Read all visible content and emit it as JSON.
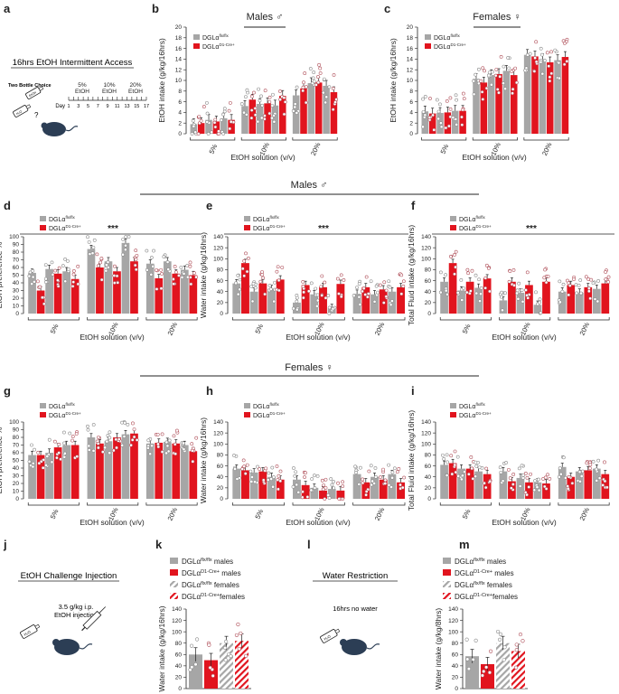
{
  "colors": {
    "ctrl": "#a6a6a6",
    "cre": "#e1141e",
    "dot_ctrl": "#8a8a8a",
    "dot_cre": "#b0505a"
  },
  "panel_letters": [
    "a",
    "b",
    "c",
    "d",
    "e",
    "f",
    "g",
    "h",
    "i",
    "j",
    "k",
    "l",
    "m"
  ],
  "sex": {
    "males": "Males ♂",
    "females": "Females ♀"
  },
  "legend": {
    "ctrl_base": "DGLα",
    "ctrl_sup": "flx/flx",
    "cre_base": "DGLα",
    "cre_sup": "D1-Cre+"
  },
  "stars": "***",
  "panel_a": {
    "title": "16hrs EtOH Intermittent Access",
    "two_bottle": "Two Bottle Choice",
    "bottle_label": "EtOH",
    "question": "?",
    "day_label": "Day",
    "days": [
      "1",
      "3",
      "5",
      "7",
      "9",
      "11",
      "13",
      "15",
      "17"
    ],
    "phases": [
      {
        "pct": "5%",
        "lab": "EtOH"
      },
      {
        "pct": "10%",
        "lab": "EtOH"
      },
      {
        "pct": "20%",
        "lab": "EtOH"
      }
    ]
  },
  "panel_j": {
    "title": "EtOH Challenge Injection",
    "dose": "3.5 g/kg i.p.",
    "inj": "EtOH injection",
    "bottle": "H₂O"
  },
  "panel_l": {
    "title": "Water Restriction",
    "text": "16hrs no water",
    "bottle": "H₂O"
  },
  "legend_km": [
    {
      "base": "DGLα",
      "sup": "flx/flx",
      "suffix": " males"
    },
    {
      "base": "DGLα",
      "sup": "D1-Cre+",
      "suffix": " males"
    },
    {
      "base": "DGLα",
      "sup": "flx/flx",
      "suffix": " females"
    },
    {
      "base": "DGLα",
      "sup": "D1-Cre+",
      "suffix": "females"
    }
  ],
  "chart_data": [
    {
      "id": "b",
      "type": "bar",
      "ylabel": "EtOH intake (g/kg/16hrs)",
      "xlabel": "EtOH solution (v/v)",
      "categories": [
        "5%",
        "10%",
        "20%"
      ],
      "ylim": [
        0,
        20
      ],
      "yticks": [
        0,
        2,
        4,
        6,
        8,
        10,
        12,
        14,
        16,
        18,
        20
      ],
      "series": [
        {
          "name": "DGLα flx/flx",
          "values": [
            [
              1.8,
              2.6,
              2.9
            ],
            [
              5.2,
              5.6,
              5.3
            ],
            [
              7.2,
              9.5,
              9.0
            ]
          ]
        },
        {
          "name": "DGLα D1-Cre+",
          "values": [
            [
              2.0,
              2.3,
              2.6
            ],
            [
              6.4,
              5.7,
              7.1
            ],
            [
              8.5,
              9.6,
              7.8
            ]
          ]
        }
      ]
    },
    {
      "id": "c",
      "type": "bar",
      "ylabel": "EtOH intake (g/kg/16hrs)",
      "xlabel": "EtOH solution (v/v)",
      "categories": [
        "5%",
        "10%",
        "20%"
      ],
      "ylim": [
        0,
        20
      ],
      "yticks": [
        0,
        2,
        4,
        6,
        8,
        10,
        12,
        14,
        16,
        18,
        20
      ],
      "series": [
        {
          "name": "DGLα flx/flx",
          "values": [
            [
              4.2,
              3.9,
              4.3
            ],
            [
              10.3,
              11.0,
              11.8
            ],
            [
              14.8,
              14.0,
              13.8
            ]
          ]
        },
        {
          "name": "DGLα D1-Cre+",
          "values": [
            [
              3.8,
              4.0,
              4.3
            ],
            [
              9.6,
              11.2,
              11.0
            ],
            [
              14.5,
              13.4,
              14.4
            ]
          ]
        }
      ]
    },
    {
      "id": "d",
      "type": "bar",
      "ylabel": "EtOH preference %",
      "xlabel": "EtOH solution (v/v)",
      "categories": [
        "5%",
        "10%",
        "20%"
      ],
      "ylim": [
        0,
        100
      ],
      "yticks": [
        0,
        10,
        20,
        30,
        40,
        50,
        60,
        70,
        80,
        90,
        100
      ],
      "series": [
        {
          "name": "DGLα flx/flx",
          "values": [
            [
              53,
              58,
              55
            ],
            [
              84,
              68,
              92
            ],
            [
              65,
              68,
              57
            ]
          ]
        },
        {
          "name": "DGLα D1-Cre+",
          "values": [
            [
              30,
              52,
              45
            ],
            [
              60,
              55,
              68
            ],
            [
              46,
              52,
              50
            ]
          ]
        }
      ]
    },
    {
      "id": "e",
      "type": "bar",
      "ylabel": "Water intake (g/kg/16hrs)",
      "xlabel": "EtOH solution (v/v)",
      "categories": [
        "5%",
        "10%",
        "20%"
      ],
      "ylim": [
        0,
        140
      ],
      "yticks": [
        0,
        20,
        40,
        60,
        80,
        100,
        120,
        140
      ],
      "series": [
        {
          "name": "DGLα flx/flx",
          "values": [
            [
              55,
              40,
              45
            ],
            [
              20,
              35,
              10
            ],
            [
              36,
              35,
              40
            ]
          ]
        },
        {
          "name": "DGLα D1-Cre+",
          "values": [
            [
              92,
              55,
              62
            ],
            [
              52,
              48,
              54
            ],
            [
              48,
              44,
              48
            ]
          ]
        }
      ]
    },
    {
      "id": "f",
      "type": "bar",
      "ylabel": "Total Fluid intake (g/kg/16hrs)",
      "xlabel": "EtOH solution (v/v)",
      "categories": [
        "5%",
        "10%",
        "20%"
      ],
      "ylim": [
        0,
        140
      ],
      "yticks": [
        0,
        20,
        40,
        60,
        80,
        100,
        120,
        140
      ],
      "series": [
        {
          "name": "DGLα flx/flx",
          "values": [
            [
              58,
              42,
              47
            ],
            [
              24,
              38,
              16
            ],
            [
              40,
              38,
              45
            ]
          ]
        },
        {
          "name": "DGLα D1-Cre+",
          "values": [
            [
              92,
              58,
              64
            ],
            [
              58,
              52,
              58
            ],
            [
              52,
              48,
              55
            ]
          ]
        }
      ]
    },
    {
      "id": "g",
      "type": "bar",
      "ylabel": "EtOH preference %",
      "xlabel": "EtOH solution (v/v)",
      "categories": [
        "5%",
        "10%",
        "20%"
      ],
      "ylim": [
        0,
        100
      ],
      "yticks": [
        0,
        10,
        20,
        30,
        40,
        50,
        60,
        70,
        80,
        90,
        100
      ],
      "series": [
        {
          "name": "DGLα flx/flx",
          "values": [
            [
              57,
              60,
              70
            ],
            [
              80,
              75,
              84
            ],
            [
              72,
              74,
              70
            ]
          ]
        },
        {
          "name": "DGLα D1-Cre+",
          "values": [
            [
              57,
              67,
              70
            ],
            [
              72,
              80,
              85
            ],
            [
              73,
              72,
              62
            ]
          ]
        }
      ]
    },
    {
      "id": "h",
      "type": "bar",
      "ylabel": "Water intake (g/kg/16hrs)",
      "xlabel": "EtOH solution (v/v)",
      "categories": [
        "5%",
        "10%",
        "20%"
      ],
      "ylim": [
        0,
        140
      ],
      "yticks": [
        0,
        20,
        40,
        60,
        80,
        100,
        120,
        140
      ],
      "series": [
        {
          "name": "DGLα flx/flx",
          "values": [
            [
              55,
              48,
              40
            ],
            [
              35,
              20,
              18
            ],
            [
              45,
              40,
              45
            ]
          ]
        },
        {
          "name": "DGLα D1-Cre+",
          "values": [
            [
              52,
              50,
              35
            ],
            [
              25,
              15,
              15
            ],
            [
              30,
              35,
              30
            ]
          ]
        }
      ]
    },
    {
      "id": "i",
      "type": "bar",
      "ylabel": "Total Fluid intake (g/kg/16hrs)",
      "xlabel": "EtOH solution (v/v)",
      "categories": [
        "5%",
        "10%",
        "20%"
      ],
      "ylim": [
        0,
        140
      ],
      "yticks": [
        0,
        20,
        40,
        60,
        80,
        100,
        120,
        140
      ],
      "series": [
        {
          "name": "DGLα flx/flx",
          "values": [
            [
              62,
              55,
              50
            ],
            [
              50,
              38,
              30
            ],
            [
              58,
              50,
              55
            ]
          ]
        },
        {
          "name": "DGLα D1-Cre+",
          "values": [
            [
              65,
              55,
              45
            ],
            [
              32,
              30,
              28
            ],
            [
              40,
              52,
              45
            ]
          ]
        }
      ]
    },
    {
      "id": "k",
      "type": "bar",
      "ylabel": "Water intake (g/kg/16hrs)",
      "categories": [
        "DGLα flx/flx males",
        "DGLα D1-Cre+ males",
        "DGLα flx/flx females",
        "DGLα D1-Cre+ females"
      ],
      "ylim": [
        0,
        140
      ],
      "yticks": [
        0,
        20,
        40,
        60,
        80,
        100,
        120,
        140
      ],
      "values": [
        60,
        50,
        80,
        84
      ]
    },
    {
      "id": "m",
      "type": "bar",
      "ylabel": "Water intake (g/kg/8hrs)",
      "categories": [
        "DGLα flx/flx males",
        "DGLα D1-Cre+ males",
        "DGLα flx/flx females",
        "DGLα D1-Cre+ females"
      ],
      "ylim": [
        0,
        140
      ],
      "yticks": [
        0,
        20,
        40,
        60,
        80,
        100,
        120,
        140
      ],
      "values": [
        57,
        43,
        80,
        66
      ]
    }
  ]
}
